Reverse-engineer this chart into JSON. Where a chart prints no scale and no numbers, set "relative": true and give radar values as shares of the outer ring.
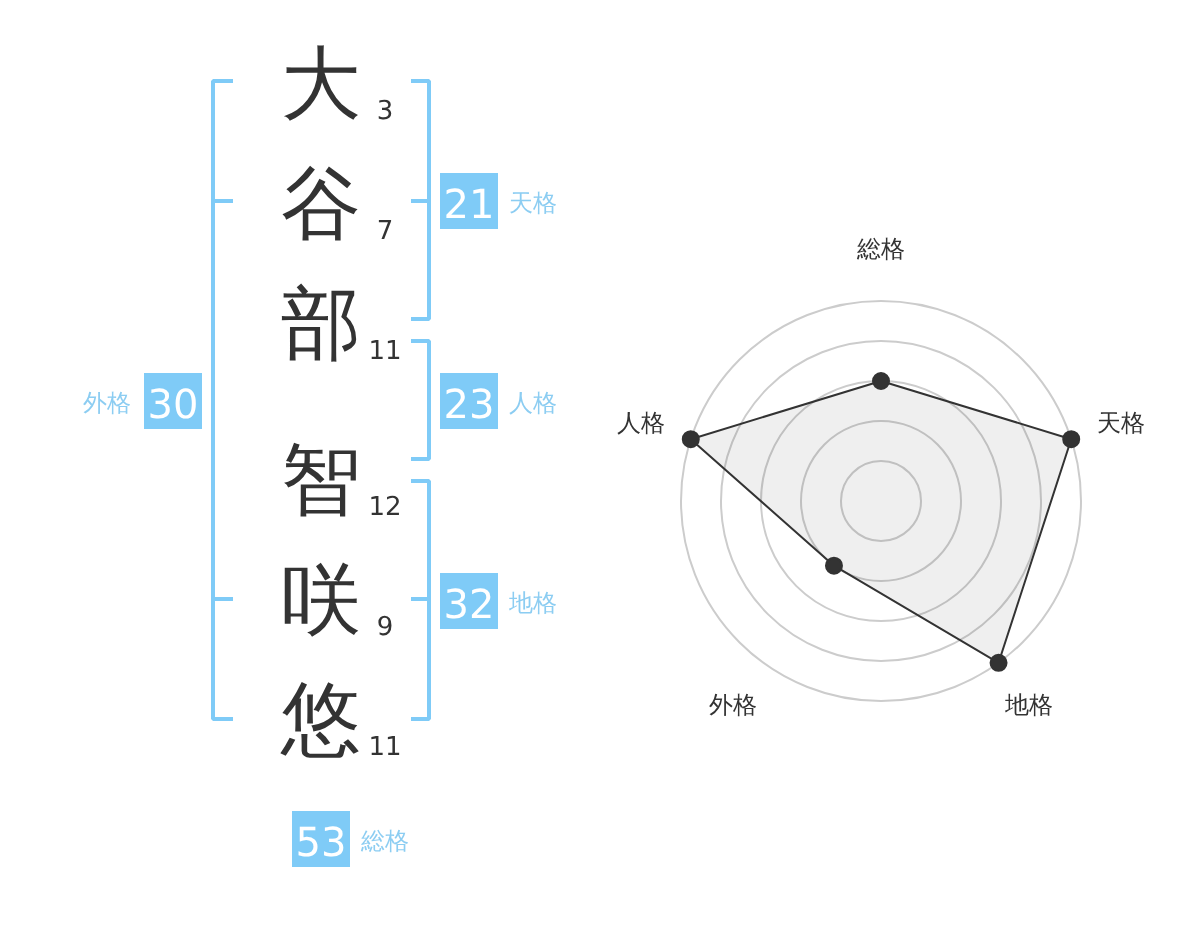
{
  "chart_data": [
    {
      "type": "other",
      "annotations": [
        "大",
        "3",
        "谷",
        "7",
        "部",
        "11",
        "智",
        "12",
        "咲",
        "9",
        "悠",
        "11",
        "21",
        "天格",
        "23",
        "人格",
        "32",
        "地格",
        "30",
        "外格",
        "53",
        "総格"
      ]
    },
    {
      "type": "radar",
      "categories": [
        "総格",
        "天格",
        "地格",
        "外格",
        "人格"
      ],
      "relative": true,
      "grid": true,
      "marker": "circle",
      "series": [
        {
          "color": "#333333",
          "values": [
            0.6,
            1,
            1,
            0.4,
            1
          ]
        }
      ]
    }
  ]
}
